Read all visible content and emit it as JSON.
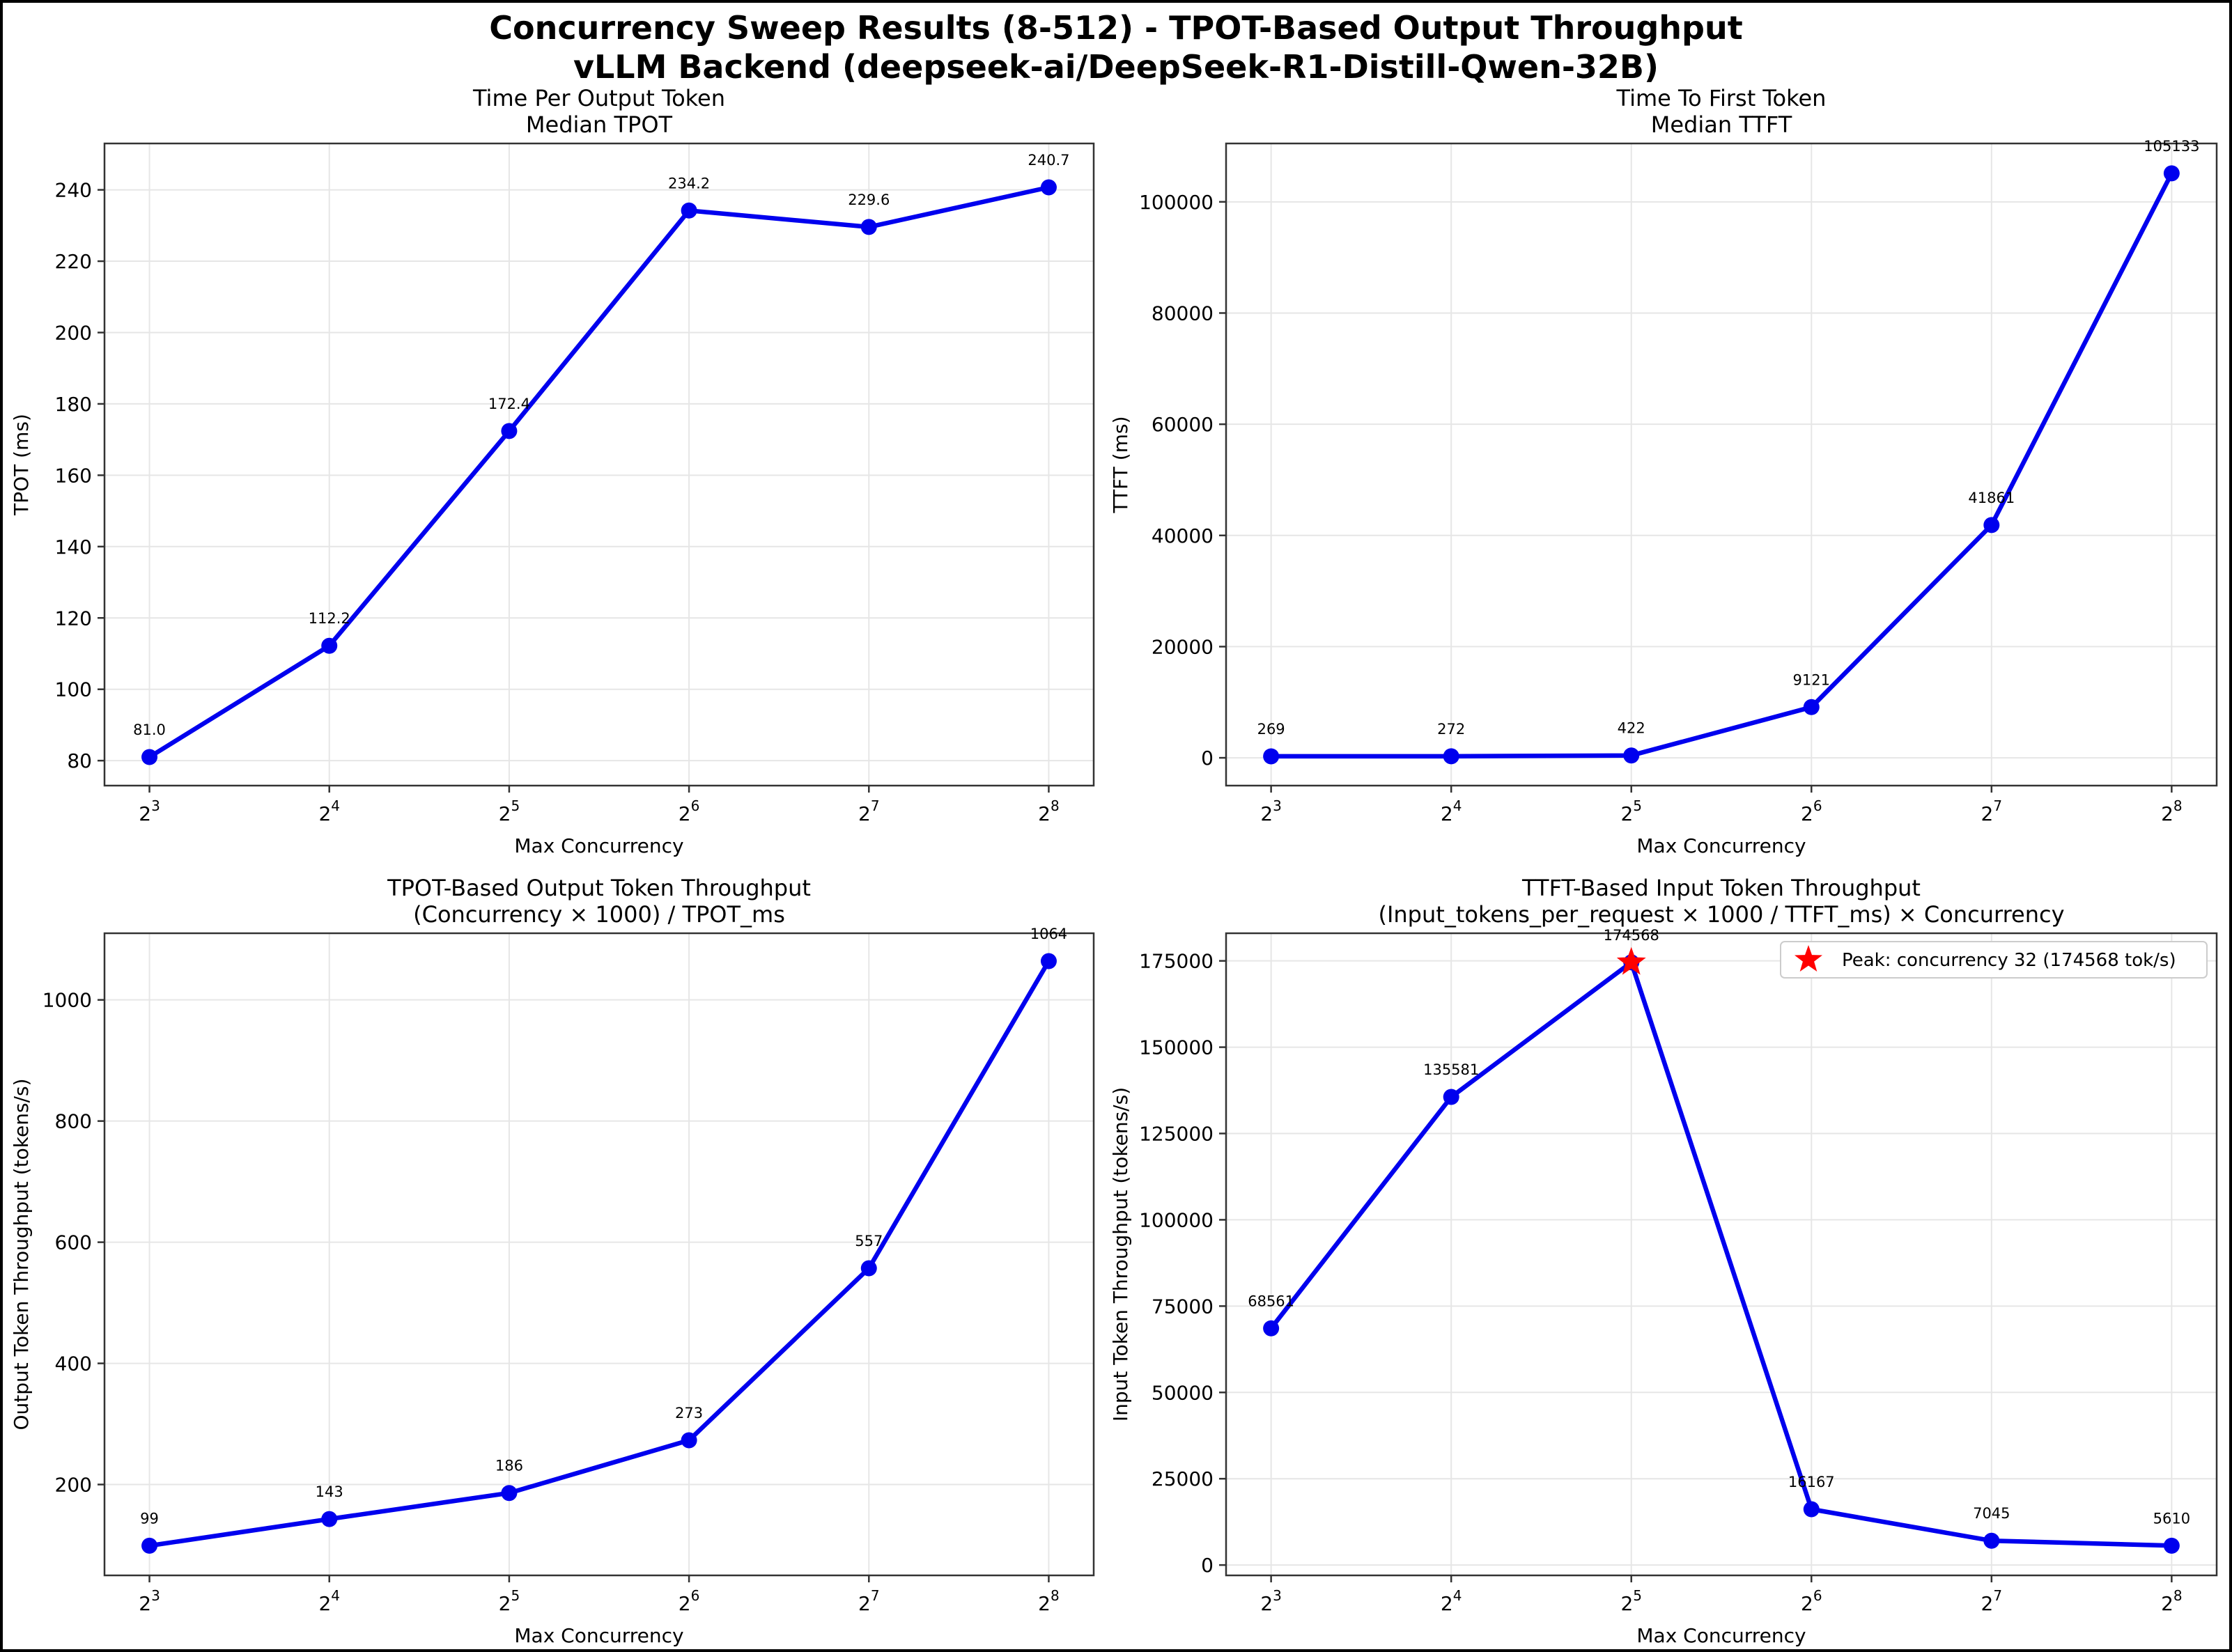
{
  "suptitle": {
    "line1": "Concurrency Sweep Results (8-512) - TPOT-Based Output Throughput",
    "line2": "vLLM Backend (deepseek-ai/DeepSeek-R1-Distill-Qwen-32B)"
  },
  "colors": {
    "series": "#0000ee",
    "peak": "#ff0000",
    "grid": "#e6e6e6",
    "axis": "#333333"
  },
  "chart_data": [
    {
      "type": "line",
      "title": "Time Per Output Token",
      "subtitle": "Median TPOT",
      "xlabel": "Max Concurrency",
      "ylabel": "TPOT (ms)",
      "x": [
        8,
        16,
        32,
        64,
        128,
        256
      ],
      "x_scale": "log2",
      "xticks": [
        {
          "base": "2",
          "exp": "3"
        },
        {
          "base": "2",
          "exp": "4"
        },
        {
          "base": "2",
          "exp": "5"
        },
        {
          "base": "2",
          "exp": "6"
        },
        {
          "base": "2",
          "exp": "7"
        },
        {
          "base": "2",
          "exp": "8"
        }
      ],
      "y": [
        81.0,
        112.2,
        172.4,
        234.2,
        229.6,
        240.7
      ],
      "labels": [
        "81.0",
        "112.2",
        "172.4",
        "234.2",
        "229.6",
        "240.7"
      ],
      "ylim": [
        73,
        253
      ],
      "yticks": [
        80,
        100,
        120,
        140,
        160,
        180,
        200,
        220,
        240
      ],
      "grid": true
    },
    {
      "type": "line",
      "title": "Time To First Token",
      "subtitle": "Median TTFT",
      "xlabel": "Max Concurrency",
      "ylabel": "TTFT (ms)",
      "x": [
        8,
        16,
        32,
        64,
        128,
        256
      ],
      "x_scale": "log2",
      "xticks": [
        {
          "base": "2",
          "exp": "3"
        },
        {
          "base": "2",
          "exp": "4"
        },
        {
          "base": "2",
          "exp": "5"
        },
        {
          "base": "2",
          "exp": "6"
        },
        {
          "base": "2",
          "exp": "7"
        },
        {
          "base": "2",
          "exp": "8"
        }
      ],
      "y": [
        269,
        272,
        422,
        9121,
        41861,
        105133
      ],
      "labels": [
        "269",
        "272",
        "422",
        "9121",
        "41861",
        "105133"
      ],
      "ylim": [
        -5000,
        110500
      ],
      "yticks": [
        0,
        20000,
        40000,
        60000,
        80000,
        100000
      ],
      "grid": true
    },
    {
      "type": "line",
      "title": "TPOT-Based Output Token Throughput",
      "subtitle": "(Concurrency × 1000) / TPOT_ms",
      "xlabel": "Max Concurrency",
      "ylabel": "Output Token Throughput (tokens/s)",
      "x": [
        8,
        16,
        32,
        64,
        128,
        256
      ],
      "x_scale": "log2",
      "xticks": [
        {
          "base": "2",
          "exp": "3"
        },
        {
          "base": "2",
          "exp": "4"
        },
        {
          "base": "2",
          "exp": "5"
        },
        {
          "base": "2",
          "exp": "6"
        },
        {
          "base": "2",
          "exp": "7"
        },
        {
          "base": "2",
          "exp": "8"
        }
      ],
      "y": [
        99,
        143,
        186,
        273,
        557,
        1064
      ],
      "labels": [
        "99",
        "143",
        "186",
        "273",
        "557",
        "1064"
      ],
      "ylim": [
        50,
        1110
      ],
      "yticks": [
        200,
        400,
        600,
        800,
        1000
      ],
      "grid": true
    },
    {
      "type": "line",
      "title": "TTFT-Based Input Token Throughput",
      "subtitle": "(Input_tokens_per_request × 1000 / TTFT_ms) × Concurrency",
      "xlabel": "Max Concurrency",
      "ylabel": "Input Token Throughput (tokens/s)",
      "x": [
        8,
        16,
        32,
        64,
        128,
        256
      ],
      "x_scale": "log2",
      "xticks": [
        {
          "base": "2",
          "exp": "3"
        },
        {
          "base": "2",
          "exp": "4"
        },
        {
          "base": "2",
          "exp": "5"
        },
        {
          "base": "2",
          "exp": "6"
        },
        {
          "base": "2",
          "exp": "7"
        },
        {
          "base": "2",
          "exp": "8"
        }
      ],
      "y": [
        68561,
        135581,
        174568,
        16167,
        7045,
        5610
      ],
      "labels": [
        "68561",
        "135581",
        "174568",
        "16167",
        "7045",
        "5610"
      ],
      "ylim": [
        -3000,
        183000
      ],
      "yticks": [
        0,
        25000,
        50000,
        75000,
        100000,
        125000,
        150000,
        175000
      ],
      "grid": true,
      "peak": {
        "x": 32,
        "y": 174568
      },
      "legend": {
        "label": "Peak: concurrency 32 (174568 tok/s)",
        "position": "top-right"
      }
    }
  ]
}
